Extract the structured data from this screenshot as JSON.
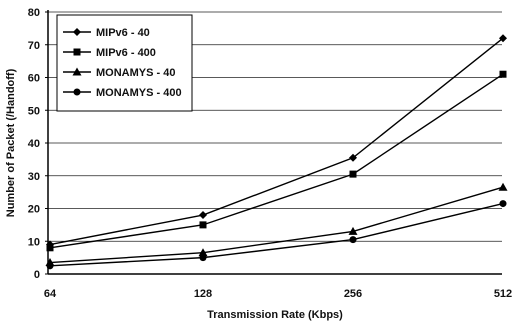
{
  "chart_data": {
    "type": "line",
    "title": "",
    "xlabel": "Transmission Rate (Kbps)",
    "ylabel": "Number of Packet (/Handoff)",
    "categories": [
      "64",
      "128",
      "256",
      "512"
    ],
    "ylim": [
      0,
      80
    ],
    "yticks": [
      "0",
      "10",
      "20",
      "30",
      "40",
      "50",
      "60",
      "70",
      "80"
    ],
    "grid": true,
    "legend_position": "top-left",
    "series": [
      {
        "name": "MIPv6 - 40",
        "marker": "diamond",
        "values": [
          9,
          18,
          35.5,
          72
        ]
      },
      {
        "name": "MIPv6 - 400",
        "marker": "square",
        "values": [
          8,
          15,
          30.5,
          61
        ]
      },
      {
        "name": "MONAMYS - 40",
        "marker": "triangle",
        "values": [
          3.5,
          6.5,
          13,
          26.5
        ]
      },
      {
        "name": "MONAMYS - 400",
        "marker": "circle",
        "values": [
          2.5,
          5,
          10.5,
          21.5
        ]
      }
    ]
  }
}
